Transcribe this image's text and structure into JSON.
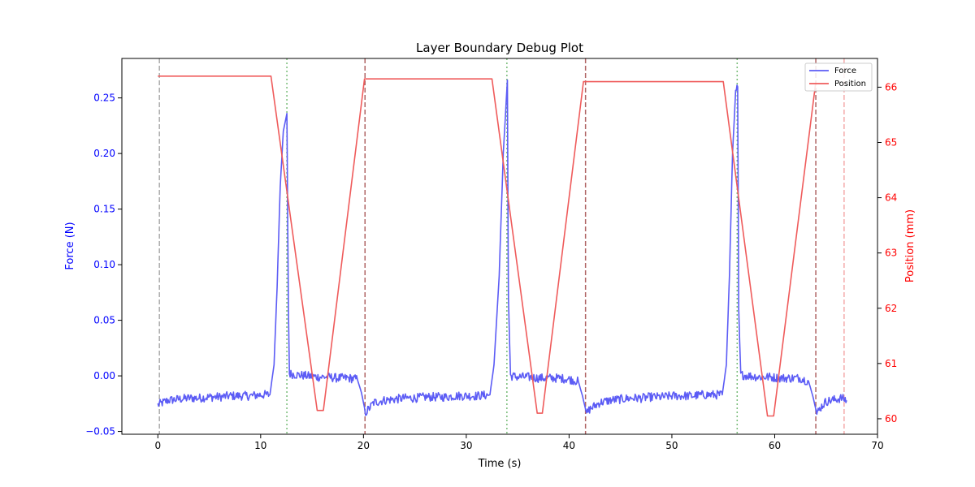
{
  "chart_data": {
    "type": "line",
    "title": "Layer Boundary Debug Plot",
    "xlabel": "Time (s)",
    "ylabel_left": "Force (N)",
    "ylabel_right": "Position (mm)",
    "xlim": [
      -3.5,
      70
    ],
    "ylim_left": [
      -0.0525,
      0.2855
    ],
    "ylim_right": [
      59.72,
      66.52
    ],
    "x_ticks": [
      0,
      10,
      20,
      30,
      40,
      50,
      60,
      70
    ],
    "x_tick_labels": [
      "0",
      "10",
      "20",
      "30",
      "40",
      "50",
      "60",
      "70"
    ],
    "y_left_ticks": [
      -0.05,
      0.0,
      0.05,
      0.1,
      0.15,
      0.2,
      0.25
    ],
    "y_left_tick_labels": [
      "−0.05",
      "0.00",
      "0.05",
      "0.10",
      "0.15",
      "0.20",
      "0.25"
    ],
    "y_right_ticks": [
      60,
      61,
      62,
      63,
      64,
      65,
      66
    ],
    "y_right_tick_labels": [
      "60",
      "61",
      "62",
      "63",
      "64",
      "65",
      "66"
    ],
    "grid": false,
    "legend_position": "top-right",
    "series": [
      {
        "name": "Force",
        "axis": "left",
        "color": "#5c5cf5",
        "noisy": true,
        "x": [
          0,
          1,
          2,
          3,
          4,
          5,
          6,
          7,
          8,
          9,
          10,
          10.9,
          11.3,
          11.6,
          11.9,
          12.2,
          12.55,
          12.7,
          12.8,
          13.5,
          14.5,
          15.5,
          16.5,
          17.5,
          18.5,
          19.4,
          19.8,
          20.2,
          20.5,
          21,
          22,
          23,
          24,
          25,
          26,
          27,
          28,
          29,
          30,
          31,
          32.3,
          32.7,
          33.2,
          33.6,
          34.0,
          34.1,
          34.3,
          35,
          36,
          37,
          38,
          39,
          40,
          40.9,
          41.3,
          41.7,
          42,
          43,
          44,
          45,
          46,
          47,
          48,
          49,
          50,
          51,
          52,
          53,
          54,
          54.9,
          55.3,
          55.6,
          55.9,
          56.2,
          56.4,
          56.5,
          56.7,
          57.5,
          58.5,
          59.5,
          60.5,
          61.5,
          62.5,
          63.3,
          63.7,
          64.1,
          64.5,
          65,
          65.5,
          66,
          66.5,
          67.0
        ],
        "values": [
          -0.026,
          -0.022,
          -0.021,
          -0.02,
          -0.02,
          -0.019,
          -0.019,
          -0.018,
          -0.018,
          -0.018,
          -0.017,
          -0.017,
          0.01,
          0.08,
          0.17,
          0.22,
          0.236,
          0.06,
          0.002,
          0.001,
          0.0,
          -0.001,
          -0.001,
          -0.002,
          -0.002,
          -0.003,
          -0.015,
          -0.033,
          -0.03,
          -0.024,
          -0.022,
          -0.021,
          -0.02,
          -0.02,
          -0.019,
          -0.019,
          -0.019,
          -0.018,
          -0.018,
          -0.018,
          -0.017,
          0.01,
          0.09,
          0.2,
          0.266,
          0.07,
          0.0,
          -0.001,
          -0.001,
          -0.002,
          -0.002,
          -0.002,
          -0.003,
          -0.005,
          -0.018,
          -0.034,
          -0.03,
          -0.024,
          -0.022,
          -0.021,
          -0.02,
          -0.02,
          -0.019,
          -0.019,
          -0.018,
          -0.018,
          -0.018,
          -0.017,
          -0.017,
          -0.017,
          0.01,
          0.09,
          0.2,
          0.255,
          0.26,
          0.06,
          0.001,
          0.0,
          -0.001,
          -0.001,
          -0.002,
          -0.002,
          -0.002,
          -0.005,
          -0.018,
          -0.034,
          -0.028,
          -0.023,
          -0.022,
          -0.021,
          -0.02,
          -0.022
        ]
      },
      {
        "name": "Position",
        "axis": "right",
        "color": "#ef5b5b",
        "noisy": false,
        "x": [
          0,
          11.0,
          15.5,
          16.1,
          20.1,
          32.5,
          36.9,
          37.4,
          41.4,
          55.0,
          59.3,
          59.9,
          64.0
        ],
        "values": [
          66.2,
          66.2,
          60.15,
          60.15,
          66.15,
          66.15,
          60.1,
          60.1,
          66.1,
          66.1,
          60.05,
          60.05,
          66.1
        ]
      }
    ],
    "vertical_lines": [
      {
        "x": 0.15,
        "style": "dashed",
        "color": "#aaaaaa"
      },
      {
        "x": 12.55,
        "style": "dotted",
        "color": "#77bb77"
      },
      {
        "x": 20.15,
        "style": "dashed",
        "color": "#b06464"
      },
      {
        "x": 33.95,
        "style": "dotted",
        "color": "#77bb77"
      },
      {
        "x": 41.6,
        "style": "dashed",
        "color": "#b06464"
      },
      {
        "x": 56.35,
        "style": "dotted",
        "color": "#77bb77"
      },
      {
        "x": 64.0,
        "style": "dashed",
        "color": "#b06464"
      },
      {
        "x": 66.75,
        "style": "dashed",
        "color": "#f4aaaa"
      }
    ],
    "colors": {
      "left_axis": "#0000ff",
      "right_axis": "#ff0000",
      "axes": "#000000"
    }
  }
}
